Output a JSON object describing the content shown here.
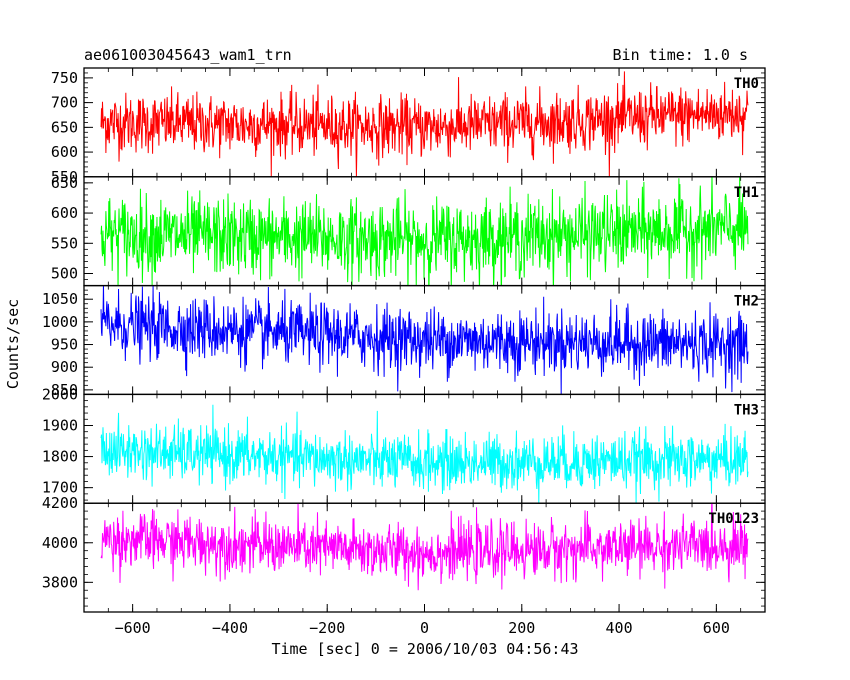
{
  "header": {
    "title": "ae061003045643_wam1_trn",
    "bin_time": "Bin time: 1.0 s"
  },
  "chart_data": {
    "type": "line",
    "xlabel": "Time [sec] 0 = 2006/10/03 04:56:43",
    "ylabel": "Counts/sec",
    "xlim": [
      -700,
      700
    ],
    "x_range": [
      -665,
      665
    ],
    "x_ticks": [
      -600,
      -400,
      -200,
      0,
      200,
      400,
      600
    ],
    "x_tick_labels": [
      "−600",
      "−400",
      "−200",
      "0",
      "200",
      "400",
      "600"
    ],
    "grid": false,
    "panels": [
      {
        "name": "TH0",
        "color": "#ff0000",
        "ylim": [
          550,
          770
        ],
        "y_ticks": [
          550,
          600,
          650,
          700,
          750
        ],
        "mean_start": 660,
        "mean_mid": 650,
        "mean_end": 680,
        "noise": 30
      },
      {
        "name": "TH1",
        "color": "#00ff00",
        "ylim": [
          480,
          660
        ],
        "y_ticks": [
          500,
          550,
          600,
          650
        ],
        "mean_start": 565,
        "mean_mid": 555,
        "mean_end": 575,
        "noise": 32
      },
      {
        "name": "TH2",
        "color": "#0000ff",
        "ylim": [
          840,
          1080
        ],
        "y_ticks": [
          850,
          900,
          950,
          1000,
          1050
        ],
        "mean_start": 995,
        "mean_mid": 960,
        "mean_end": 950,
        "noise": 35
      },
      {
        "name": "TH3",
        "color": "#00ffff",
        "ylim": [
          1650,
          2000
        ],
        "y_ticks": [
          1700,
          1800,
          1900,
          2000
        ],
        "mean_start": 1820,
        "mean_mid": 1780,
        "mean_end": 1790,
        "noise": 45
      },
      {
        "name": "TH0123",
        "color": "#ff00ff",
        "ylim": [
          3650,
          4200
        ],
        "y_ticks": [
          3800,
          4000,
          4200
        ],
        "mean_start": 4020,
        "mean_mid": 3950,
        "mean_end": 3990,
        "noise": 70
      }
    ]
  }
}
